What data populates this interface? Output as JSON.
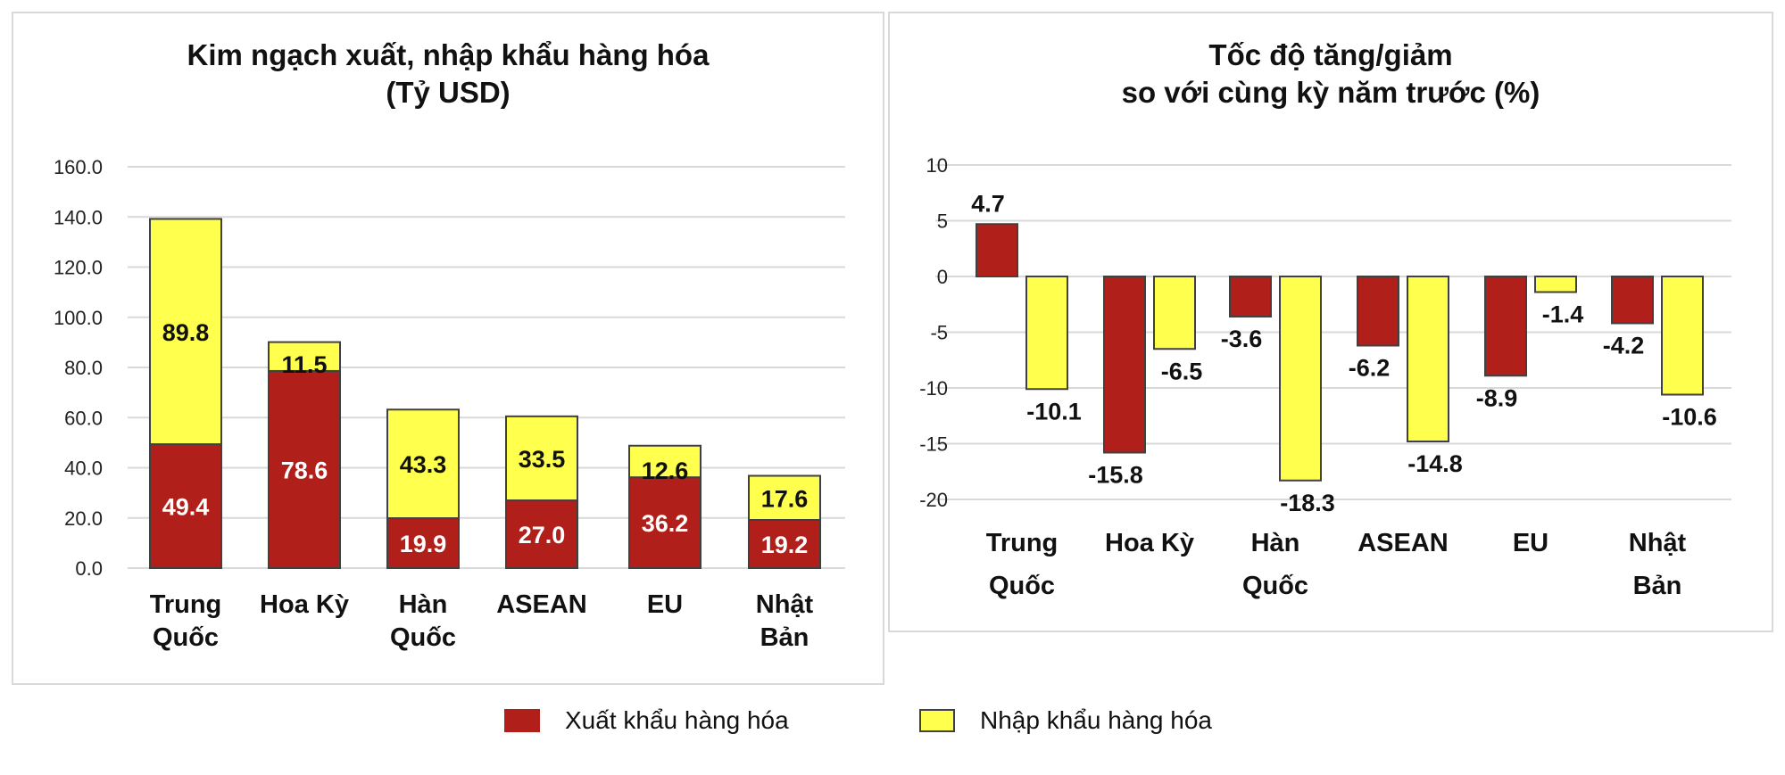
{
  "colors": {
    "export": "#b01f19",
    "import": "#ffff4d",
    "bar_outline": "#404040",
    "gridline": "#d9d9d9"
  },
  "legend": {
    "items": [
      {
        "label": "Xuất khẩu hàng hóa",
        "color": "#b01f19"
      },
      {
        "label": "Nhập khẩu hàng hóa",
        "color": "#ffff4d"
      }
    ]
  },
  "left_chart": {
    "title_line1": "Kim ngạch xuất, nhập khẩu hàng hóa",
    "title_line2": "(Tỷ USD)"
  },
  "right_chart": {
    "title_line1": "Tốc độ tăng/giảm",
    "title_line2": "so với cùng kỳ năm trước (%)"
  },
  "chart_data": [
    {
      "type": "bar",
      "stacked": true,
      "title": "Kim ngạch xuất, nhập khẩu hàng hóa (Tỷ USD)",
      "xlabel": "",
      "ylabel": "",
      "categories": [
        "Trung Quốc",
        "Hoa Kỳ",
        "Hàn Quốc",
        "ASEAN",
        "EU",
        "Nhật Bản"
      ],
      "category_lines": [
        [
          "Trung",
          "Quốc"
        ],
        [
          "Hoa Kỳ"
        ],
        [
          "Hàn",
          "Quốc"
        ],
        [
          "ASEAN"
        ],
        [
          "EU"
        ],
        [
          "Nhật",
          "Bản"
        ]
      ],
      "series": [
        {
          "name": "Xuất khẩu hàng hóa",
          "values": [
            49.4,
            78.6,
            19.9,
            27.0,
            36.2,
            19.2
          ],
          "labels": [
            "49.4",
            "78.6",
            "19.9",
            "27.0",
            "36.2",
            "19.2"
          ]
        },
        {
          "name": "Nhập khẩu hàng hóa",
          "values": [
            89.8,
            11.5,
            43.3,
            33.5,
            12.6,
            17.6
          ],
          "labels": [
            "89.8",
            "11.5",
            "43.3",
            "33.5",
            "12.6",
            "17.6"
          ]
        }
      ],
      "ylim": [
        0,
        160
      ],
      "yticks": [
        "0.0",
        "20.0",
        "40.0",
        "60.0",
        "80.0",
        "100.0",
        "120.0",
        "140.0",
        "160.0"
      ],
      "grid": true,
      "legend_position": "bottom"
    },
    {
      "type": "bar",
      "stacked": false,
      "title": "Tốc độ tăng/giảm so với cùng kỳ năm trước (%)",
      "xlabel": "",
      "ylabel": "",
      "categories": [
        "Trung Quốc",
        "Hoa Kỳ",
        "Hàn Quốc",
        "ASEAN",
        "EU",
        "Nhật Bản"
      ],
      "category_lines": [
        [
          "Trung",
          "Quốc"
        ],
        [
          "Hoa Kỳ"
        ],
        [
          "Hàn",
          "Quốc"
        ],
        [
          "ASEAN"
        ],
        [
          "EU"
        ],
        [
          "Nhật",
          "Bản"
        ]
      ],
      "series": [
        {
          "name": "Xuất khẩu hàng hóa",
          "values": [
            4.7,
            -15.8,
            -3.6,
            -6.2,
            -8.9,
            -4.2
          ],
          "labels": [
            "4.7",
            "-15.8",
            "-3.6",
            "-6.2",
            "-8.9",
            "-4.2"
          ]
        },
        {
          "name": "Nhập khẩu hàng hóa",
          "values": [
            -10.1,
            -6.5,
            -18.3,
            -14.8,
            -1.4,
            -10.6
          ],
          "labels": [
            "-10.1",
            "-6.5",
            "-18.3",
            "-14.8",
            "-1.4",
            "-10.6"
          ]
        }
      ],
      "ylim": [
        -20,
        10
      ],
      "yticks": [
        "10",
        "5",
        "0",
        "-5",
        "-10",
        "-15",
        "-20"
      ],
      "grid": true,
      "legend_position": "bottom"
    }
  ]
}
